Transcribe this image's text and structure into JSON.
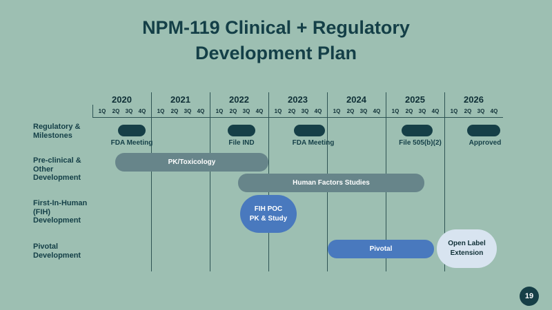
{
  "title": {
    "line1": "NPM-119 Clinical + Regulatory",
    "line2": "Development Plan"
  },
  "years": [
    "2020",
    "2021",
    "2022",
    "2023",
    "2024",
    "2025",
    "2026"
  ],
  "quarters": [
    "1Q",
    "2Q",
    "3Q",
    "4Q"
  ],
  "rows": {
    "regulatory": "Regulatory & Milestones",
    "preclinical": "Pre-clinical & Other Development",
    "fih": "First-In-Human (FIH) Development",
    "pivotal": "Pivotal Development"
  },
  "milestones": [
    {
      "label": "FDA Meeting"
    },
    {
      "label": "File IND"
    },
    {
      "label": "FDA Meeting"
    },
    {
      "label": "File 505(b)(2)"
    },
    {
      "label": "Approved"
    }
  ],
  "bars": {
    "pk_tox": "PK/Toxicology",
    "human_factors": "Human Factors Studies",
    "fih_line1": "FIH POC",
    "fih_line2": "PK & Study",
    "pivotal": "Pivotal",
    "ole_line1": "Open Label",
    "ole_line2": "Extension"
  },
  "colors": {
    "background": "#9dbfb2",
    "title": "#143f47",
    "milestone": "#163f47",
    "gray_bar": "#67858a",
    "blue_bar": "#4979be",
    "pale_bar": "#d8e4f0"
  },
  "page_number": "19"
}
